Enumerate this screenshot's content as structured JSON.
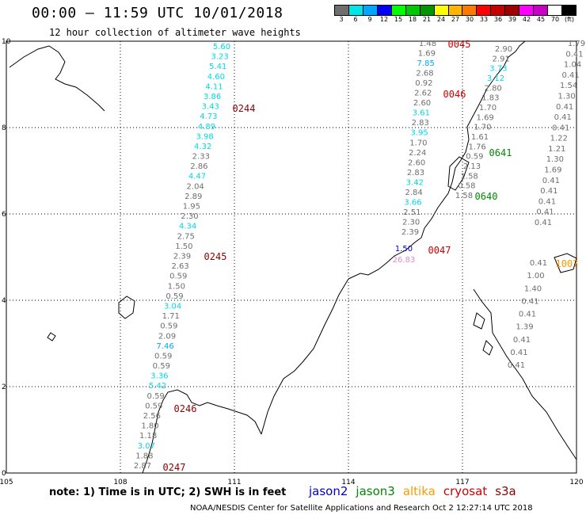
{
  "header": {
    "title": "00:00 – 11:59 UTC 10/01/2018",
    "subtitle": "12 hour collection of altimeter wave heights"
  },
  "legend": {
    "colors": [
      "#6e6e6e",
      "#00e6e6",
      "#00a6ff",
      "#0000ff",
      "#00ff00",
      "#00c800",
      "#009600",
      "#ffff00",
      "#ffb400",
      "#ff7800",
      "#ff0000",
      "#c80000",
      "#a00000",
      "#ff00ff",
      "#c800c8",
      "#ffffff",
      "#000000"
    ],
    "labels": [
      "3",
      "6",
      "9",
      "12",
      "15",
      "18",
      "21",
      "24",
      "27",
      "30",
      "33",
      "36",
      "39",
      "42",
      "45",
      "70",
      "(ft)"
    ]
  },
  "axes": {
    "x_ticks": [
      "105",
      "108",
      "111",
      "114",
      "117",
      "120"
    ],
    "y_ticks": [
      "0",
      "2",
      "4",
      "6",
      "8",
      "10"
    ]
  },
  "passes": [
    {
      "label": "0045",
      "color": "#cc0000"
    },
    {
      "label": "0046",
      "color": "#cc0000"
    },
    {
      "label": "0244",
      "color": "#8b0000"
    },
    {
      "label": "0641",
      "color": "#008800"
    },
    {
      "label": "0640",
      "color": "#008800"
    },
    {
      "label": "0047",
      "color": "#cc0000"
    },
    {
      "label": "0245",
      "color": "#8b0000"
    },
    {
      "label": "1007",
      "color": "#ff9900"
    },
    {
      "label": "0246",
      "color": "#8b0000"
    },
    {
      "label": "0247",
      "color": "#8b0000"
    }
  ],
  "tracks": [
    {
      "name": "track-0244",
      "values": [
        "5.60",
        "3.23",
        "5.41",
        "4.60",
        "4.11",
        "3.86",
        "3.43",
        "4.73",
        "4.89",
        "3.98",
        "4.32",
        "2.33",
        "2.86",
        "4.47",
        "2.04",
        "2.89",
        "1.95",
        "2.30",
        "4.34",
        "2.75",
        "1.50",
        "2.39",
        "2.63",
        "0.59",
        "1.50",
        "0.59",
        "3.04",
        "1.71",
        "0.59",
        "2.09",
        "7.46",
        "0.59",
        "0.59",
        "3.36",
        "5.42",
        "0.59",
        "0.59",
        "2.56",
        "1.80",
        "1.18",
        "3.07",
        "1.88",
        "2.87"
      ]
    },
    {
      "name": "track-0046",
      "values": [
        "1.48",
        "1.69",
        "7.85",
        "2.68",
        "0.92",
        "2.62",
        "2.60",
        "3.61",
        "2.83",
        "3.95",
        "1.70",
        "2.24",
        "2.60",
        "2.83",
        "3.42",
        "2.84",
        "3.66",
        "2.51",
        "2.30",
        "2.39"
      ]
    },
    {
      "name": "track-0641",
      "values": [
        "2.90",
        "2.91",
        "3.73",
        "3.12",
        "2.80",
        "1.83",
        "1.70",
        "1.69",
        "1.70",
        "1.61",
        "1.76",
        "0.59",
        "2.13",
        "1.58",
        "0.58",
        "1.58"
      ]
    },
    {
      "name": "track-far-east",
      "values": [
        "1.79",
        "0.41",
        "1.04",
        "0.41",
        "1.54",
        "1.30",
        "0.41",
        "0.41",
        "0.41",
        "1.22",
        "1.21",
        "1.30",
        "1.69",
        "0.41",
        "0.41",
        "0.41",
        "0.41",
        "0.41"
      ]
    },
    {
      "name": "track-1007",
      "values": [
        "0.41",
        "1.00",
        "1.40",
        "0.41",
        "0.41",
        "1.39",
        "0.41",
        "0.41",
        "0.41"
      ]
    },
    {
      "name": "track-0047",
      "values": [
        "1.50",
        "26.83"
      ]
    }
  ],
  "footer": {
    "note": "note: 1) Time is in UTC; 2) SWH is in feet",
    "satellites": [
      {
        "name": "jason2",
        "color": "#0000cc"
      },
      {
        "name": "jason3",
        "color": "#008800"
      },
      {
        "name": "altika",
        "color": "#ff9900"
      },
      {
        "name": "cryosat",
        "color": "#cc0000"
      },
      {
        "name": "s3a",
        "color": "#8b0000"
      }
    ],
    "credit": "NOAA/NESDIS Center for Satellite Applications and Research     Oct  2 12:27:14 UTC 2018"
  }
}
